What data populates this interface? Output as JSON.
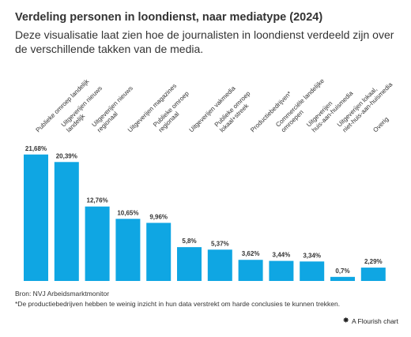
{
  "header": {
    "title": "Verdeling personen in loondienst, naar mediatype (2024)",
    "subtitle": "Deze visualisatie laat zien hoe de journalisten in loondienst verdeeld zijn over de verschillende takken van de media."
  },
  "footer": {
    "source": "Bron: NVJ Arbeidsmarktmonitor",
    "note": "*De productiebedrijven hebben te weinig inzicht in hun data verstrekt om harde conclusies te kunnen trekken.",
    "credit": "A Flourish chart",
    "credit_icon": "flourish-logo-icon"
  },
  "chart_data": {
    "type": "bar",
    "title": "Verdeling personen in loondienst, naar mediatype (2024)",
    "xlabel": "",
    "ylabel": "",
    "ylim": [
      0,
      23
    ],
    "grid": false,
    "legend": "none",
    "bar_color": "#0fa6e3",
    "categories": [
      [
        "Publieke omroep landelijk"
      ],
      [
        "Uitgeverijen nieuws",
        "landelijk"
      ],
      [
        "Uitgeverijen nieuws",
        "regionaal"
      ],
      [
        "Uitgeverijen magazines"
      ],
      [
        "Publieke omroep",
        "regionaal"
      ],
      [
        "Uitgeverijen vakmedia"
      ],
      [
        "Publieke omroep",
        "lokaal+streek"
      ],
      [
        "Productiebedrijven*"
      ],
      [
        "Commerciële landelijke",
        "omroepen"
      ],
      [
        "Uitgeverijen",
        "huis-aan-huismedia"
      ],
      [
        "Uitgeverijen lokaal,",
        "niet-huis-aan-huismedia"
      ],
      [
        "Overig"
      ]
    ],
    "values": [
      21.68,
      20.39,
      12.76,
      10.65,
      9.96,
      5.8,
      5.37,
      3.62,
      3.44,
      3.34,
      0.7,
      2.29
    ],
    "value_labels": [
      "21,68%",
      "20,39%",
      "12,76%",
      "10,65%",
      "9,96%",
      "5,8%",
      "5,37%",
      "3,62%",
      "3,44%",
      "3,34%",
      "0,7%",
      "2,29%"
    ]
  }
}
